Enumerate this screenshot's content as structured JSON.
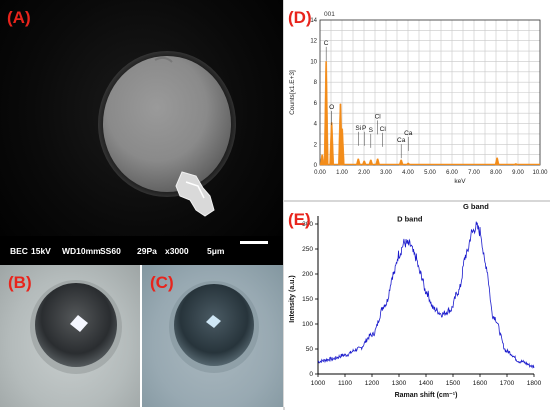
{
  "panels": {
    "a_label": "(A)",
    "b_label": "(B)",
    "c_label": "(C)",
    "d_label": "(D)",
    "e_label": "(E)"
  },
  "sem_info": {
    "mode": "BEC",
    "voltage": "15kV",
    "wd": "WD10mm",
    "ss": "SS60",
    "pressure": "29Pa",
    "magnification": "x3000",
    "scale": "5μm"
  },
  "colors": {
    "label_red": "#e8241c",
    "eds_orange": "#f28c1a",
    "raman_blue": "#1a1acc"
  },
  "chart_data": [
    {
      "type": "line",
      "panel": "D",
      "title": "001",
      "xlabel": "keV",
      "ylabel": "Counts[x1.E+3]",
      "xlim": [
        0,
        10
      ],
      "ylim": [
        0,
        14
      ],
      "grid": true,
      "x_ticks": [
        "0.00",
        "1.00",
        "2.00",
        "3.00",
        "4.00",
        "5.00",
        "6.00",
        "7.00",
        "8.00",
        "9.00",
        "10.00"
      ],
      "y_ticks": [
        "0",
        "2",
        "4",
        "6",
        "8",
        "10",
        "12",
        "14"
      ],
      "peaks": [
        {
          "x": 0.1,
          "y": 1.0
        },
        {
          "x": 0.28,
          "y": 10.0
        },
        {
          "x": 0.53,
          "y": 4.1
        },
        {
          "x": 0.93,
          "y": 5.9
        },
        {
          "x": 1.01,
          "y": 3.5
        },
        {
          "x": 1.74,
          "y": 0.6
        },
        {
          "x": 2.01,
          "y": 0.4
        },
        {
          "x": 2.31,
          "y": 0.5
        },
        {
          "x": 2.62,
          "y": 0.6
        },
        {
          "x": 3.69,
          "y": 0.5
        },
        {
          "x": 4.01,
          "y": 0.2
        },
        {
          "x": 8.05,
          "y": 0.7
        },
        {
          "x": 8.9,
          "y": 0.15
        }
      ],
      "annotations": [
        {
          "text": "C",
          "x": 0.28,
          "y": 11.6
        },
        {
          "text": "O",
          "x": 0.53,
          "y": 5.4
        },
        {
          "text": "Si",
          "x": 1.74,
          "y": 3.4
        },
        {
          "text": "P",
          "x": 2.01,
          "y": 3.4
        },
        {
          "text": "S",
          "x": 2.31,
          "y": 3.2
        },
        {
          "text": "Cl",
          "x": 2.62,
          "y": 4.5
        },
        {
          "text": "Cl",
          "x": 2.85,
          "y": 3.3
        },
        {
          "text": "Ca",
          "x": 3.69,
          "y": 2.2
        },
        {
          "text": "Ca",
          "x": 4.01,
          "y": 2.9
        }
      ]
    },
    {
      "type": "line",
      "panel": "E",
      "xlabel": "Raman shift (cm⁻¹)",
      "ylabel": "Intensity (a.u.)",
      "xlim": [
        1000,
        1800
      ],
      "ylim": [
        0,
        300
      ],
      "x_ticks": [
        "1000",
        "1100",
        "1200",
        "1300",
        "1400",
        "1500",
        "1600",
        "1700",
        "1800"
      ],
      "y_ticks": [
        "0",
        "50",
        "100",
        "150",
        "200",
        "250",
        "300"
      ],
      "series": [
        {
          "x": [
            1000,
            1050,
            1100,
            1150,
            1200,
            1250,
            1280,
            1300,
            1320,
            1340,
            1360,
            1380,
            1400,
            1430,
            1460,
            1490,
            1520,
            1550,
            1570,
            1585,
            1600,
            1620,
            1650,
            1700,
            1750,
            1800
          ],
          "y": [
            25,
            30,
            38,
            50,
            78,
            140,
            200,
            240,
            262,
            258,
            235,
            200,
            165,
            130,
            120,
            128,
            165,
            240,
            282,
            295,
            285,
            220,
            115,
            45,
            25,
            15
          ]
        }
      ],
      "annotations": [
        {
          "text": "D band",
          "x": 1340,
          "y": 305
        },
        {
          "text": "G band",
          "x": 1585,
          "y": 330
        }
      ]
    }
  ]
}
